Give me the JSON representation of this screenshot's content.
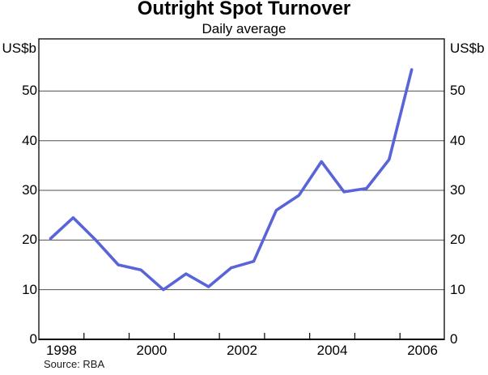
{
  "header": {
    "title": "Outright Spot Turnover",
    "subtitle": "Daily average"
  },
  "axes": {
    "unit_label_left": "US$b",
    "unit_label_right": "US$b",
    "y_tick_values": [
      0,
      10,
      20,
      30,
      40,
      50
    ],
    "x_year_labels": [
      "1998",
      "2000",
      "2002",
      "2004",
      "2006"
    ]
  },
  "footer": {
    "source": "Source: RBA"
  },
  "colors": {
    "line": "#5a64d9",
    "gridline": "#4f4f4f",
    "frame": "#000000"
  },
  "chart_data": {
    "type": "line",
    "title": "Outright Spot Turnover",
    "subtitle": "Daily average",
    "xlabel": "",
    "ylabel": "US$b",
    "ylim": [
      0,
      60
    ],
    "grid": "horizontal gridlines at 10,20,30,40,50",
    "legend": "none",
    "x_axis": {
      "range_years": [
        1998,
        2007
      ],
      "unlabeled_boundary_ticks": [
        1999,
        2000,
        2001,
        2002,
        2003,
        2004,
        2005,
        2006
      ],
      "labeled_years": [
        1998,
        2000,
        2002,
        2004,
        2006
      ]
    },
    "series": [
      {
        "name": "Outright spot turnover, daily average (US$b)",
        "x": [
          "1998 H1",
          "1998 H2",
          "1999 H1",
          "1999 H2",
          "2000 H1",
          "2000 H2",
          "2001 H1",
          "2001 H2",
          "2002 H1",
          "2002 H2",
          "2003 H1",
          "2003 H2",
          "2004 H1",
          "2004 H2",
          "2005 H1",
          "2005 H2",
          "2006 H1"
        ],
        "values": [
          20.3,
          24.5,
          20.0,
          15.0,
          14.0,
          10.0,
          13.2,
          10.6,
          14.4,
          15.7,
          26.0,
          29.0,
          35.8,
          29.7,
          30.4,
          36.2,
          54.3
        ]
      }
    ]
  }
}
